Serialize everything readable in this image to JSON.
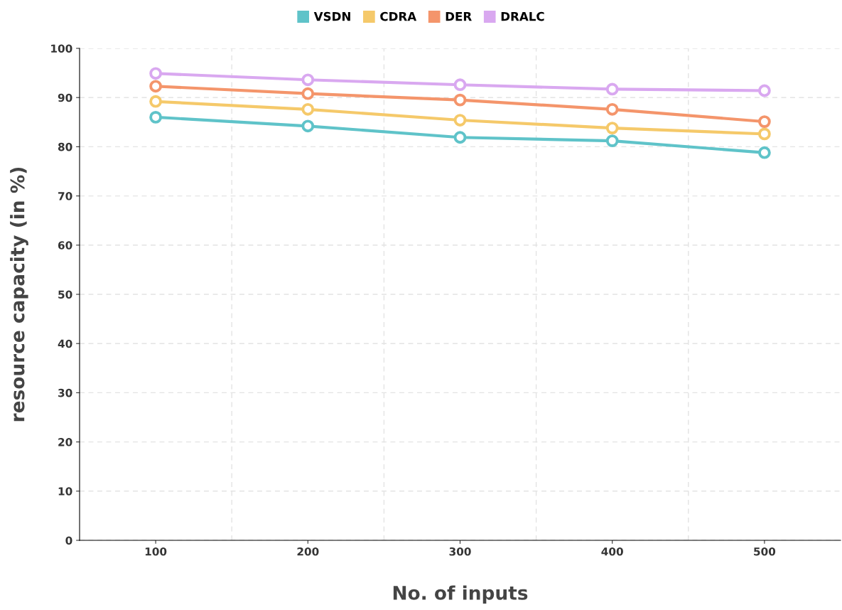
{
  "chart_data": {
    "type": "line",
    "xlabel": "No. of inputs",
    "ylabel": "resource capacity (in %)",
    "categories": [
      "100",
      "200",
      "300",
      "400",
      "500"
    ],
    "series": [
      {
        "name": "VSDN",
        "color": "#5fc3c9",
        "values": [
          86.0,
          84.2,
          81.9,
          81.2,
          78.8
        ]
      },
      {
        "name": "CDRA",
        "color": "#f5c96a",
        "values": [
          89.2,
          87.6,
          85.4,
          83.8,
          82.6
        ]
      },
      {
        "name": "DER",
        "color": "#f4956b",
        "values": [
          92.3,
          90.8,
          89.5,
          87.6,
          85.1
        ]
      },
      {
        "name": "DRALC",
        "color": "#d9a8f0",
        "values": [
          94.9,
          93.6,
          92.6,
          91.7,
          91.4
        ]
      }
    ],
    "ylim": [
      0,
      100
    ],
    "yticks": [
      0,
      10,
      20,
      30,
      40,
      50,
      60,
      70,
      80,
      90,
      100
    ],
    "grid": true,
    "legend": "top",
    "marker": "circle",
    "line_style": "solid"
  }
}
